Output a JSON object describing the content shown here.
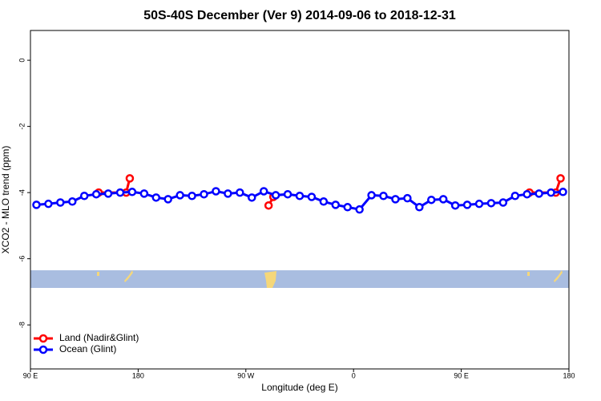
{
  "chart_data": {
    "type": "line",
    "title": "50S-40S December (Ver 9)   2014-09-06 to 2018-12-31",
    "xlabel": "Longitude (deg E)",
    "ylabel": "XCO2 - MLO trend (ppm)",
    "xlim": [
      90,
      540
    ],
    "ylim": [
      -9.33,
      0.9
    ],
    "xticks": [
      {
        "value": 90,
        "label": "90 E"
      },
      180,
      {
        "value": 270,
        "label": "90 W"
      },
      {
        "value": 360,
        "label": "0"
      },
      {
        "value": 450,
        "label": "90 E"
      },
      {
        "value": 540,
        "label": "180"
      }
    ],
    "yticks": [
      0,
      -2,
      -4,
      -6,
      -8
    ],
    "legend": "bottom-left",
    "series": [
      {
        "name": "Land (Nadir&Glint)",
        "color": "#ff0000",
        "x": [
          147,
          170,
          173,
          null,
          289,
          293,
          null,
          507,
          529,
          533
        ],
        "values": [
          -4.0,
          -4.0,
          -3.57,
          null,
          -4.39,
          -4.13,
          null,
          -4.0,
          -4.0,
          -3.57
        ]
      },
      {
        "name": "Ocean (Glint)",
        "color": "#0000ff",
        "x": [
          95,
          105,
          115,
          125,
          135,
          145,
          155,
          165,
          175,
          185,
          195,
          205,
          215,
          225,
          235,
          245,
          255,
          265,
          275,
          285,
          295,
          305,
          315,
          325,
          335,
          345,
          355,
          365,
          375,
          385,
          395,
          405,
          415,
          425,
          435,
          445,
          455,
          465,
          475,
          485,
          495,
          505,
          515,
          525,
          535
        ],
        "values": [
          -4.37,
          -4.34,
          -4.3,
          -4.27,
          -4.1,
          -4.05,
          -4.03,
          -4.0,
          -3.98,
          -4.03,
          -4.15,
          -4.2,
          -4.08,
          -4.1,
          -4.05,
          -3.96,
          -4.03,
          -4.0,
          -4.15,
          -3.96,
          -4.08,
          -4.05,
          -4.1,
          -4.13,
          -4.27,
          -4.37,
          -4.44,
          -4.51,
          -4.08,
          -4.1,
          -4.2,
          -4.17,
          -4.44,
          -4.22,
          -4.2,
          -4.39,
          -4.37,
          -4.34,
          -4.32,
          -4.3,
          -4.1,
          -4.05,
          -4.03,
          -4.0,
          -3.98
        ]
      }
    ]
  }
}
